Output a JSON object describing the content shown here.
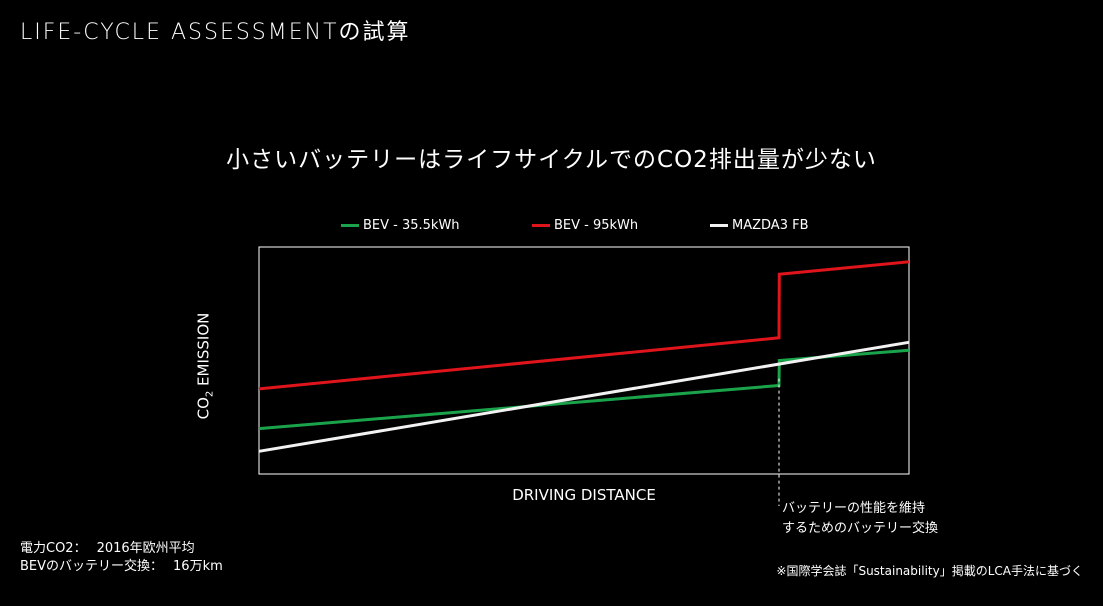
{
  "page": {
    "title": "LIFE-CYCLE ASSESSMENTの試算",
    "headline": "小さいバッテリーはライフサイクルでのCO2排出量が少ない"
  },
  "chart_data": {
    "type": "line",
    "xlabel": "DRIVING DISTANCE",
    "ylabel_main": "CO",
    "ylabel_sub": "2",
    "ylabel_rest": " EMISSION",
    "xlim": [
      0,
      100
    ],
    "ylim": [
      0,
      100
    ],
    "grid": false,
    "legend_position": "top",
    "series": [
      {
        "name": "BEV - 35.5kWh",
        "color": "#1aa34a",
        "points": [
          [
            0,
            20
          ],
          [
            80,
            39
          ],
          [
            80.05,
            50
          ],
          [
            100,
            54.5
          ]
        ]
      },
      {
        "name": "BEV - 95kWh",
        "color": "#e0141b",
        "points": [
          [
            0,
            37.5
          ],
          [
            80,
            60
          ],
          [
            80.05,
            88
          ],
          [
            100,
            93.5
          ]
        ]
      },
      {
        "name": "MAZDA3 FB",
        "color": "#f2f2f2",
        "points": [
          [
            0,
            10
          ],
          [
            100,
            58
          ]
        ]
      }
    ],
    "marker_x": 80
  },
  "annotation": {
    "line1": "バッテリーの性能を維持",
    "line2": "するためのバッテリー交換"
  },
  "footnote": {
    "row1_label": "電力CO2：",
    "row1_value": "2016年欧州平均",
    "row2_label": "BEVのバッテリー交換：",
    "row2_value": "16万km"
  },
  "source": "※国際学会誌「Sustainability」掲載のLCA手法に基づく"
}
